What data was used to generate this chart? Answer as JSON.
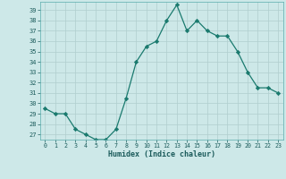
{
  "x": [
    0,
    1,
    2,
    3,
    4,
    5,
    6,
    7,
    8,
    9,
    10,
    11,
    12,
    13,
    14,
    15,
    16,
    17,
    18,
    19,
    20,
    21,
    22,
    23
  ],
  "y": [
    29.5,
    29.0,
    29.0,
    27.5,
    27.0,
    26.5,
    26.5,
    27.5,
    30.5,
    34.0,
    35.5,
    36.0,
    38.0,
    39.5,
    37.0,
    38.0,
    37.0,
    36.5,
    36.5,
    35.0,
    33.0,
    31.5,
    31.5,
    31.0
  ],
  "xlabel": "Humidex (Indice chaleur)",
  "xlim": [
    -0.5,
    23.5
  ],
  "ylim": [
    26.5,
    39.8
  ],
  "yticks": [
    27,
    28,
    29,
    30,
    31,
    32,
    33,
    34,
    35,
    36,
    37,
    38,
    39
  ],
  "xticks": [
    0,
    1,
    2,
    3,
    4,
    5,
    6,
    7,
    8,
    9,
    10,
    11,
    12,
    13,
    14,
    15,
    16,
    17,
    18,
    19,
    20,
    21,
    22,
    23
  ],
  "line_color": "#1a7a6e",
  "marker_color": "#1a7a6e",
  "bg_color": "#cde8e8",
  "grid_color": "#b0cece",
  "font_color": "#1a5a5a",
  "spine_color": "#5aacac"
}
